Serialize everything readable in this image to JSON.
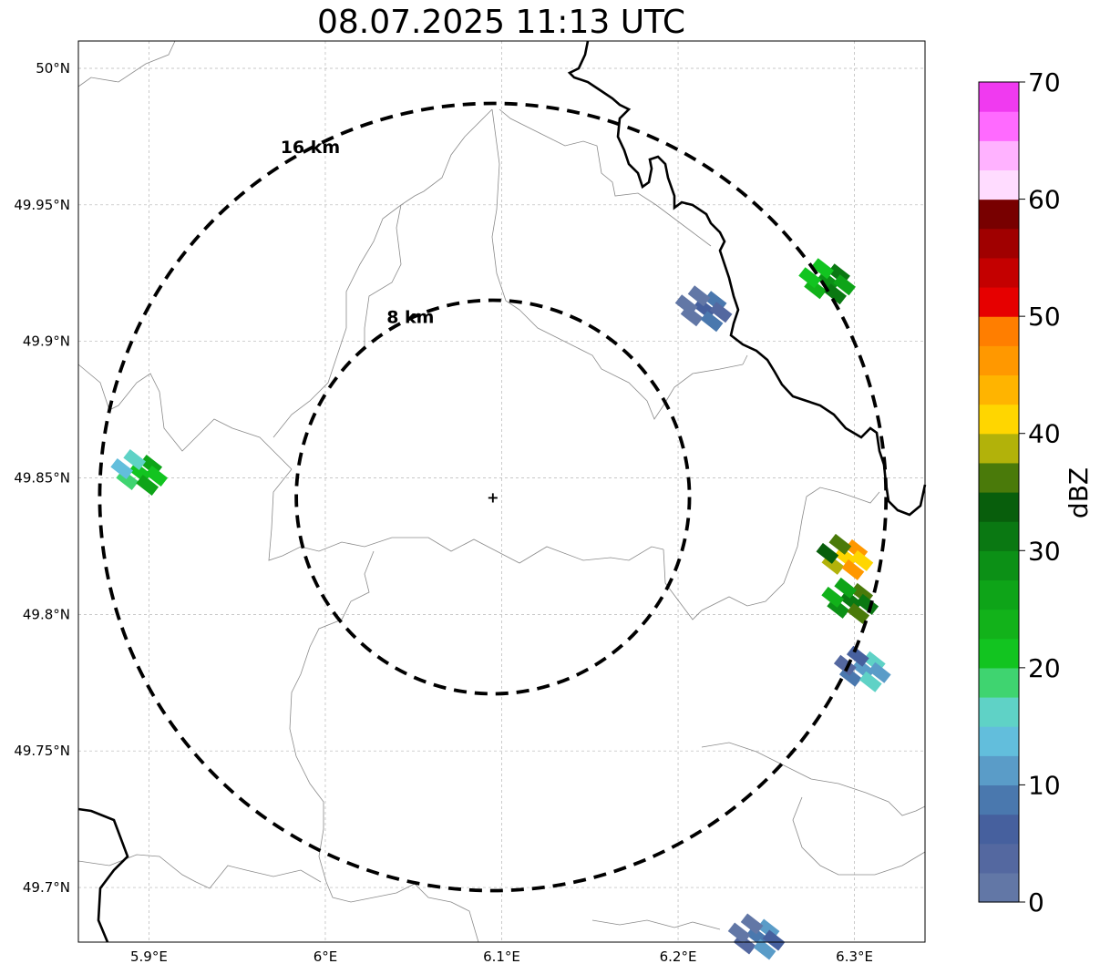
{
  "title": "08.07.2025 11:13 UTC",
  "map": {
    "lat_labels": [
      "50°N",
      "49.95°N",
      "49.9°N",
      "49.85°N",
      "49.8°N",
      "49.75°N",
      "49.7°N"
    ],
    "lon_labels": [
      "5.9°E",
      "6°E",
      "6.1°E",
      "6.2°E",
      "6.3°E"
    ],
    "lat_values": [
      50.0,
      49.95,
      49.9,
      49.85,
      49.8,
      49.75,
      49.7
    ],
    "lon_values": [
      5.9,
      6.0,
      6.1,
      6.2,
      6.3
    ],
    "extent": {
      "lon": [
        5.86,
        6.34
      ],
      "lat": [
        49.68,
        50.01
      ]
    },
    "radar_site": {
      "lon": 6.095,
      "lat": 49.843
    },
    "range_rings": [
      {
        "label": "16 km",
        "radius_km": 16
      },
      {
        "label": "8 km",
        "radius_km": 8
      }
    ],
    "echo_cells": [
      {
        "lon": 6.215,
        "lat": 49.912,
        "dbz": 5
      },
      {
        "lon": 6.285,
        "lat": 49.922,
        "dbz": 28
      },
      {
        "lon": 5.895,
        "lat": 49.852,
        "dbz": 22
      },
      {
        "lon": 6.298,
        "lat": 49.805,
        "dbz": 32
      },
      {
        "lon": 6.295,
        "lat": 49.821,
        "dbz": 42
      },
      {
        "lon": 6.305,
        "lat": 49.78,
        "dbz": 12
      },
      {
        "lon": 6.245,
        "lat": 49.682,
        "dbz": 8
      }
    ]
  },
  "colorbar": {
    "label": "dBZ",
    "ticks": [
      "0",
      "10",
      "20",
      "30",
      "40",
      "50",
      "60",
      "70"
    ],
    "colors": [
      "#6277a6",
      "#5468a0",
      "#46609e",
      "#4a78ae",
      "#5a9cc8",
      "#62bedc",
      "#5fd2c6",
      "#3fd470",
      "#12c420",
      "#12b21a",
      "#0ea418",
      "#0c9016",
      "#0a7812",
      "#085e0c",
      "#4a7a0a",
      "#b2b20a",
      "#ffd600",
      "#ffb400",
      "#ff9800",
      "#ff7e00",
      "#e60000",
      "#c40000",
      "#a00000",
      "#780000",
      "#ffdcff",
      "#ffb2ff",
      "#ff6aff",
      "#f03af0"
    ]
  }
}
